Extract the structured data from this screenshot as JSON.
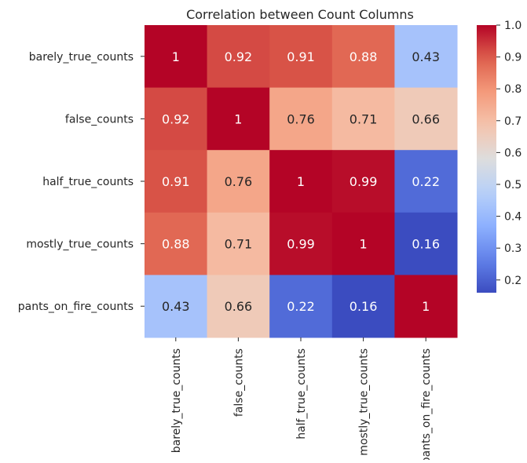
{
  "chart_data": {
    "type": "heatmap",
    "title": "Correlation between Count Columns",
    "rows": [
      "barely_true_counts",
      "false_counts",
      "half_true_counts",
      "mostly_true_counts",
      "pants_on_fire_counts"
    ],
    "columns": [
      "barely_true_counts",
      "false_counts",
      "half_true_counts",
      "mostly_true_counts",
      "pants_on_fire_counts"
    ],
    "values": [
      [
        1,
        0.92,
        0.91,
        0.88,
        0.43
      ],
      [
        0.92,
        1,
        0.76,
        0.71,
        0.66
      ],
      [
        0.91,
        0.76,
        1,
        0.99,
        0.22
      ],
      [
        0.88,
        0.71,
        0.99,
        1,
        0.16
      ],
      [
        0.43,
        0.66,
        0.22,
        0.16,
        1
      ]
    ],
    "colormap": "coolwarm",
    "colorbar": {
      "min": 0.16,
      "max": 1.0,
      "ticks": [
        "0.2",
        "0.3",
        "0.4",
        "0.5",
        "0.6",
        "0.7",
        "0.8",
        "0.9",
        "1.0"
      ]
    },
    "annotations": true,
    "xlabel": "",
    "ylabel": ""
  }
}
